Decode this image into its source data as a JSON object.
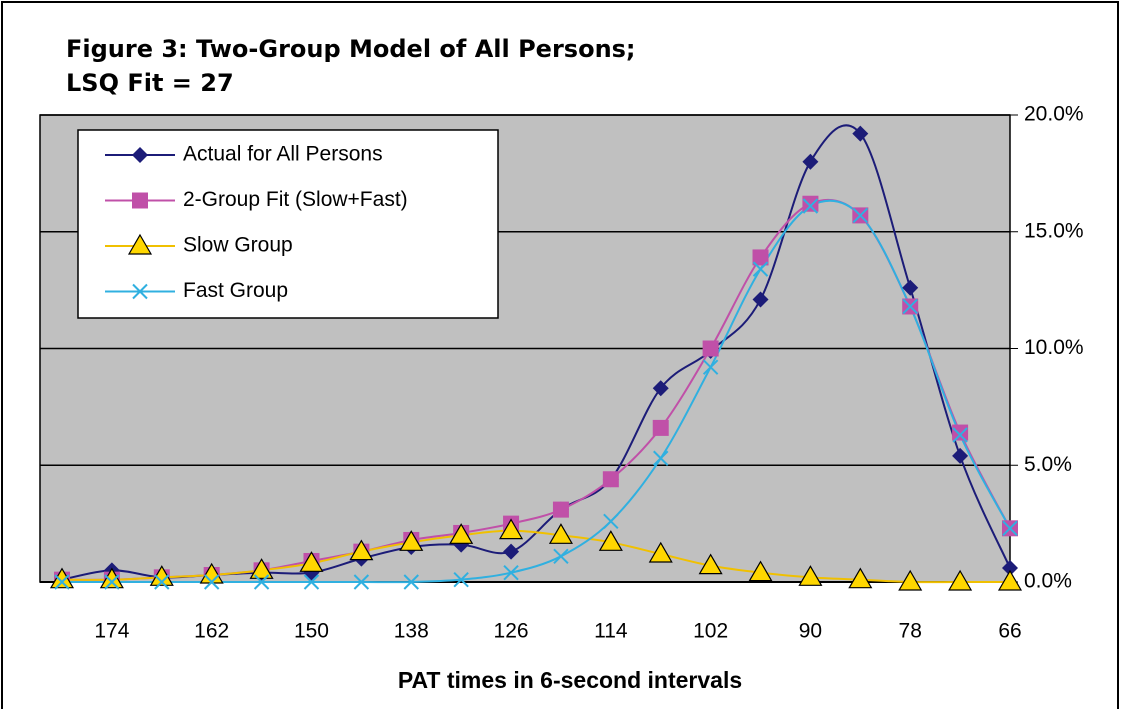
{
  "chart_data": {
    "type": "line",
    "title": "Figure 3:  Two-Group Model of All Persons;",
    "subtitle": "LSQ Fit = 27",
    "xlabel": "PAT times in 6-second intervals",
    "categories": [
      null,
      "174",
      null,
      "162",
      null,
      "150",
      null,
      "138",
      null,
      "126",
      null,
      "114",
      null,
      "102",
      null,
      "90",
      null,
      "78",
      null,
      "66"
    ],
    "series": [
      {
        "name": "Actual for All Persons",
        "color": "#1c1c78",
        "marker": "diamond",
        "values": [
          0.1,
          0.5,
          0.2,
          0.3,
          0.4,
          0.4,
          1.0,
          1.5,
          1.6,
          1.3,
          3.1,
          4.4,
          8.3,
          9.9,
          12.1,
          18.0,
          19.2,
          12.6,
          5.4,
          0.6
        ]
      },
      {
        "name": "2-Group Fit (Slow+Fast)",
        "color": "#c050a8",
        "marker": "square",
        "values": [
          0.1,
          0.1,
          0.2,
          0.3,
          0.5,
          0.9,
          1.3,
          1.8,
          2.1,
          2.5,
          3.1,
          4.4,
          6.6,
          10.0,
          13.9,
          16.2,
          15.7,
          11.8,
          6.4,
          2.3
        ]
      },
      {
        "name": "Slow Group",
        "color": "#f0c000",
        "marker": "triangle",
        "values": [
          0.1,
          0.1,
          0.2,
          0.3,
          0.5,
          0.8,
          1.3,
          1.7,
          2.0,
          2.2,
          2.0,
          1.7,
          1.2,
          0.7,
          0.4,
          0.2,
          0.1,
          0.0,
          0.0,
          0.0
        ]
      },
      {
        "name": "Fast Group",
        "color": "#30b0e0",
        "marker": "x",
        "values": [
          0.0,
          0.0,
          0.0,
          0.0,
          0.0,
          0.0,
          0.0,
          0.0,
          0.1,
          0.4,
          1.1,
          2.6,
          5.3,
          9.2,
          13.4,
          16.1,
          15.7,
          11.8,
          6.3,
          2.3
        ]
      }
    ],
    "ylim": [
      0,
      20
    ],
    "yticks": [
      {
        "value": 0,
        "label": "0.0%"
      },
      {
        "value": 5,
        "label": "5.0%"
      },
      {
        "value": 10,
        "label": "10.0%"
      },
      {
        "value": 15,
        "label": "15.0%"
      },
      {
        "value": 20,
        "label": "20.0%"
      }
    ],
    "grid": true,
    "smooth": true,
    "legend": "upper left",
    "yaxis_side": "right"
  }
}
